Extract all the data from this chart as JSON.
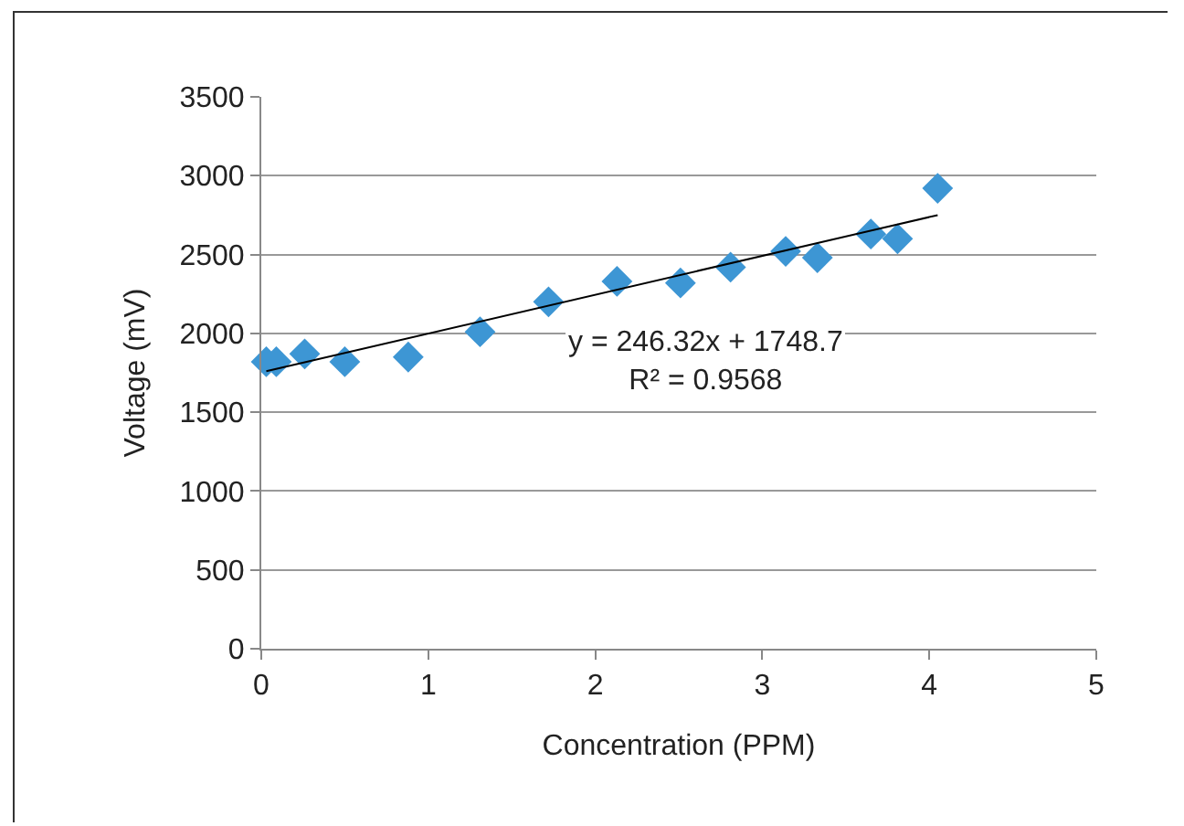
{
  "chart_data": {
    "type": "scatter",
    "xlabel": "Concentration (PPM)",
    "ylabel": "Voltage (mV)",
    "x": [
      0.03,
      0.09,
      0.26,
      0.5,
      0.88,
      1.31,
      1.72,
      2.13,
      2.51,
      2.81,
      3.14,
      3.33,
      3.65,
      3.81,
      4.05
    ],
    "series": [
      {
        "color": "#3d96d4",
        "marker": "diamond",
        "values": [
          1820,
          1820,
          1870,
          1820,
          1850,
          2010,
          2200,
          2330,
          2320,
          2420,
          2520,
          2480,
          2630,
          2600,
          2920
        ]
      },
      {
        "type": "line",
        "color": "#000000",
        "marker": "none",
        "x": [
          0.03,
          4.05
        ],
        "values": [
          1760,
          2750
        ]
      }
    ],
    "xlim": [
      0,
      5
    ],
    "xticks": [
      0,
      1,
      2,
      3,
      4,
      5
    ],
    "ylim": [
      0,
      3500
    ],
    "yticks": [
      0,
      500,
      1000,
      1500,
      2000,
      2500,
      3000,
      3500
    ],
    "grid": "y",
    "legend": false,
    "annotations": [
      "y = 246.32x + 1748.7\nR² = 0.9568"
    ]
  }
}
